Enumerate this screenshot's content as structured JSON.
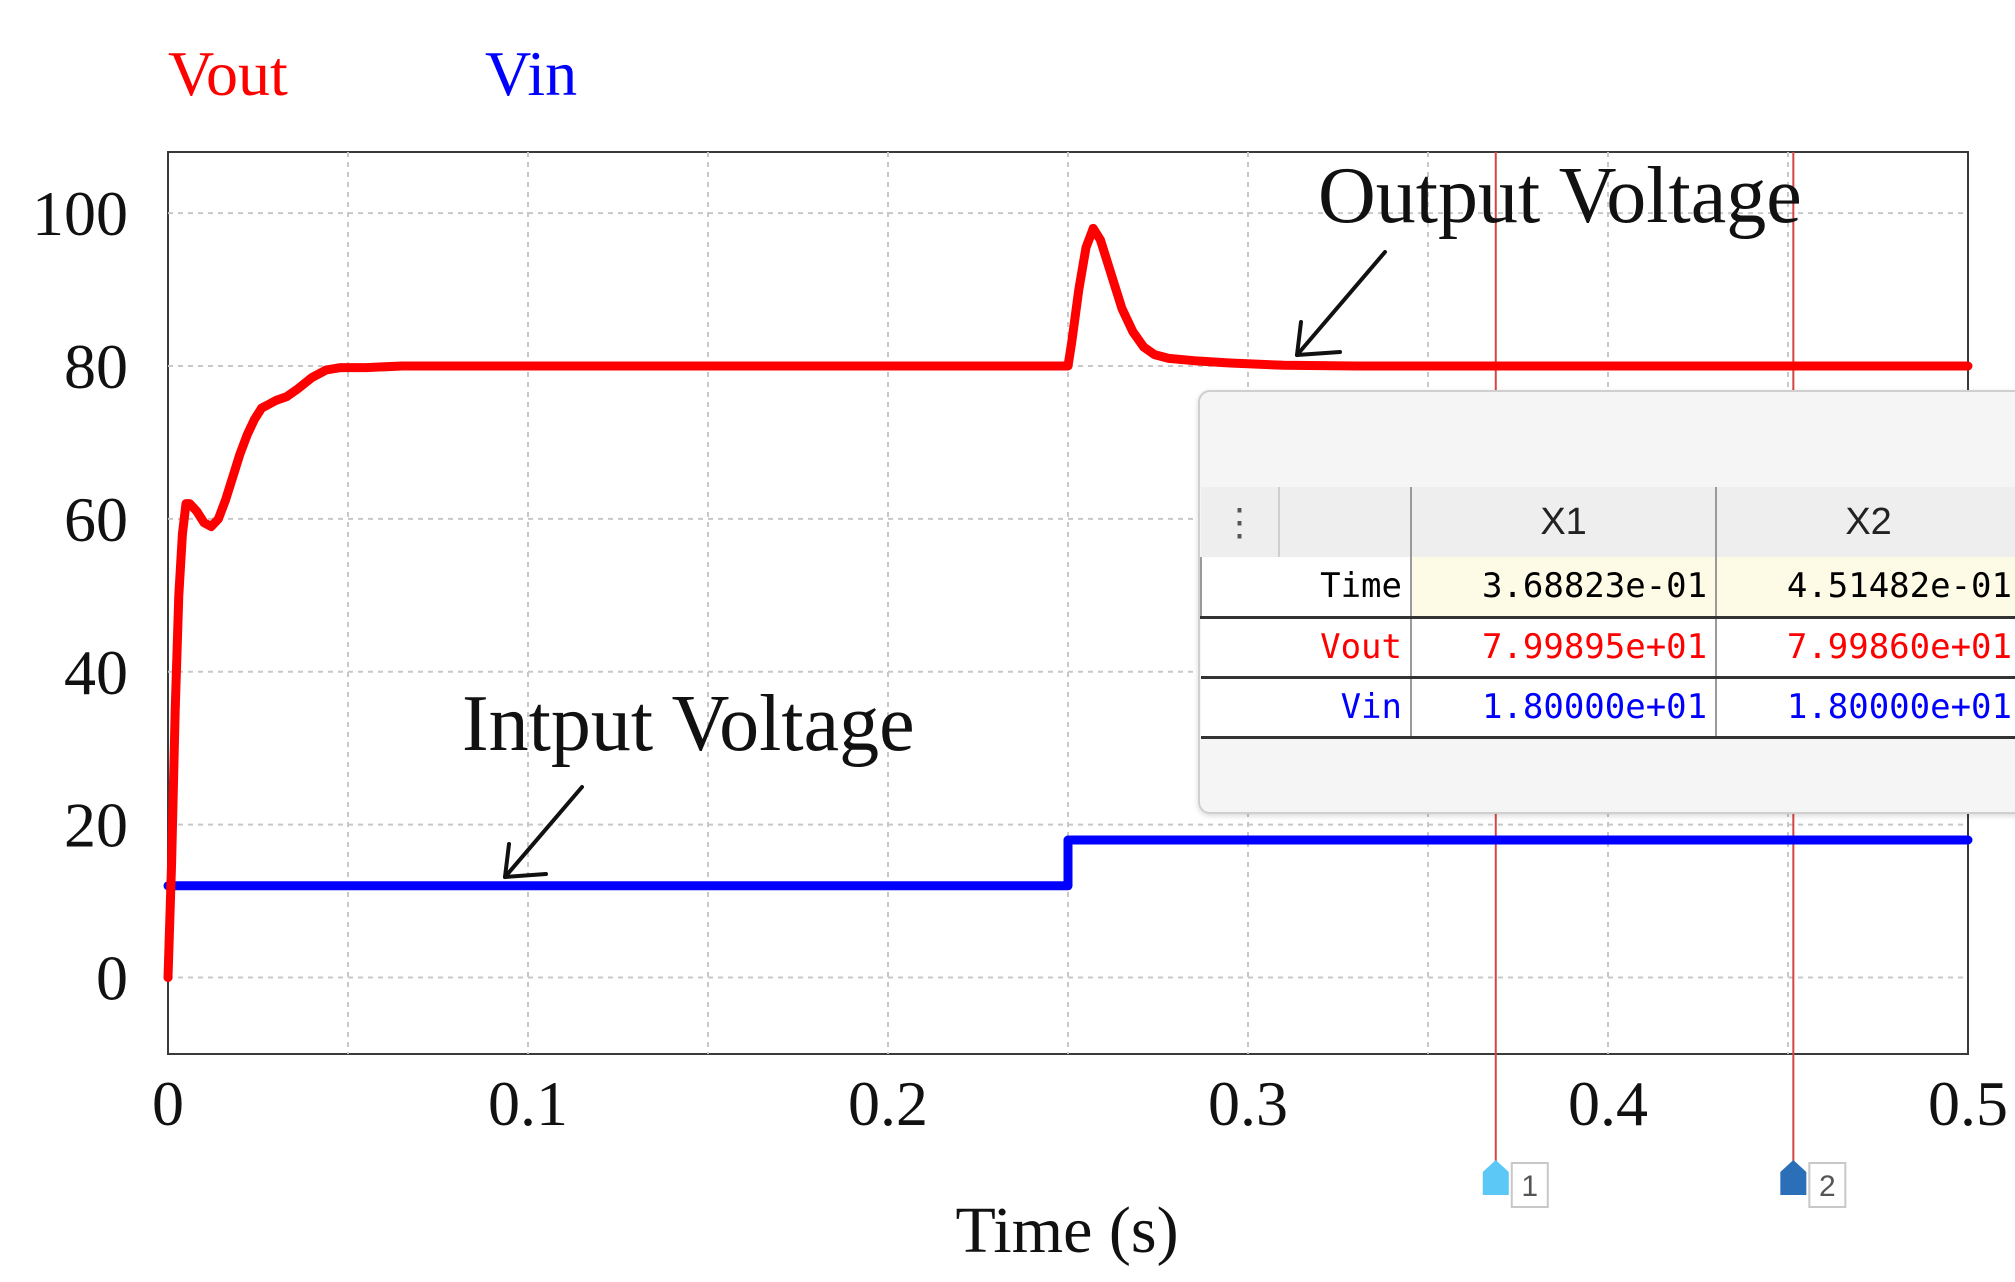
{
  "chart_data": {
    "type": "line",
    "xlabel": "Time (s)",
    "ylabel": "",
    "xlim": [
      0,
      0.5
    ],
    "ylim": [
      -10,
      108
    ],
    "x_ticks": [
      0,
      0.1,
      0.2,
      0.3,
      0.4,
      0.5
    ],
    "x_tick_labels": [
      "0",
      "0.1",
      "0.2",
      "0.3",
      "0.4",
      "0.5"
    ],
    "y_ticks": [
      0,
      20,
      40,
      60,
      80,
      100
    ],
    "y_tick_labels": [
      "0",
      "20",
      "40",
      "60",
      "80",
      "100"
    ],
    "grid": true,
    "legend": [
      {
        "name": "Vout",
        "color": "#ff0000"
      },
      {
        "name": "Vin",
        "color": "#0000ff"
      }
    ],
    "series": [
      {
        "name": "Vout",
        "color": "#ff0000",
        "x": [
          0,
          0.001,
          0.002,
          0.003,
          0.004,
          0.005,
          0.006,
          0.008,
          0.01,
          0.012,
          0.014,
          0.016,
          0.018,
          0.02,
          0.022,
          0.024,
          0.026,
          0.028,
          0.03,
          0.033,
          0.036,
          0.04,
          0.044,
          0.048,
          0.055,
          0.065,
          0.08,
          0.1,
          0.15,
          0.2,
          0.25,
          0.251,
          0.253,
          0.255,
          0.257,
          0.259,
          0.261,
          0.263,
          0.265,
          0.268,
          0.271,
          0.274,
          0.278,
          0.285,
          0.295,
          0.31,
          0.33,
          0.4,
          0.5
        ],
        "y": [
          0,
          15,
          35,
          50,
          58,
          62,
          62,
          61,
          59.5,
          59,
          60,
          62.5,
          65.5,
          68.5,
          71,
          73,
          74.5,
          75,
          75.5,
          76,
          77,
          78.5,
          79.5,
          79.8,
          79.8,
          80,
          80,
          80,
          80,
          80,
          80,
          83,
          90,
          95.5,
          98,
          96.5,
          93.5,
          90.5,
          87.5,
          84.5,
          82.5,
          81.5,
          81,
          80.7,
          80.4,
          80.1,
          80,
          80,
          80
        ]
      },
      {
        "name": "Vin",
        "color": "#0000ff",
        "x": [
          0,
          0.25,
          0.25,
          0.5
        ],
        "y": [
          12,
          12,
          18,
          18
        ]
      }
    ],
    "cursors": [
      {
        "id": "1",
        "x": 0.368823
      },
      {
        "id": "2",
        "x": 0.451482
      }
    ],
    "annotations": [
      {
        "text": "Output Voltage",
        "target_x": 0.31,
        "target_y": 80
      },
      {
        "text": "Intput Voltage",
        "target_x": 0.093,
        "target_y": 12
      }
    ]
  },
  "cursor_panel": {
    "handle": "⋮",
    "columns": [
      "X1",
      "X2"
    ],
    "rows": [
      {
        "label": "Time",
        "color": "#000000",
        "x1": "3.68823e-01",
        "x2": "4.51482e-01"
      },
      {
        "label": "Vout",
        "color": "#ff0000",
        "x1": "7.99895e+01",
        "x2": "7.99860e+01"
      },
      {
        "label": "Vin",
        "color": "#0000ff",
        "x1": "1.80000e+01",
        "x2": "1.80000e+01"
      }
    ]
  }
}
